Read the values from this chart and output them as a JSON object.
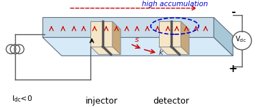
{
  "title": "",
  "bg_color": "#ffffff",
  "injector_label": "injector",
  "detector_label": "detector",
  "idc_label": "I$_{dc}$<0",
  "vdc_label": "V$_{dc}$",
  "accumulation_label": "high accumulation",
  "k_label": "k",
  "s_label": "s",
  "plus_label": "+",
  "minus_label": "-",
  "nanowire_color": "#d6eaf8",
  "nanowire_edge": "#5d6d7e",
  "contact_face_color": "#f5e6c8",
  "contact_edge_color": "#888888",
  "contact_dark": "#555555",
  "arrow_color": "#cc0000",
  "dashed_arrow_color": "#cc0000",
  "oval_color": "#0000cc",
  "circuit_color": "#555555"
}
